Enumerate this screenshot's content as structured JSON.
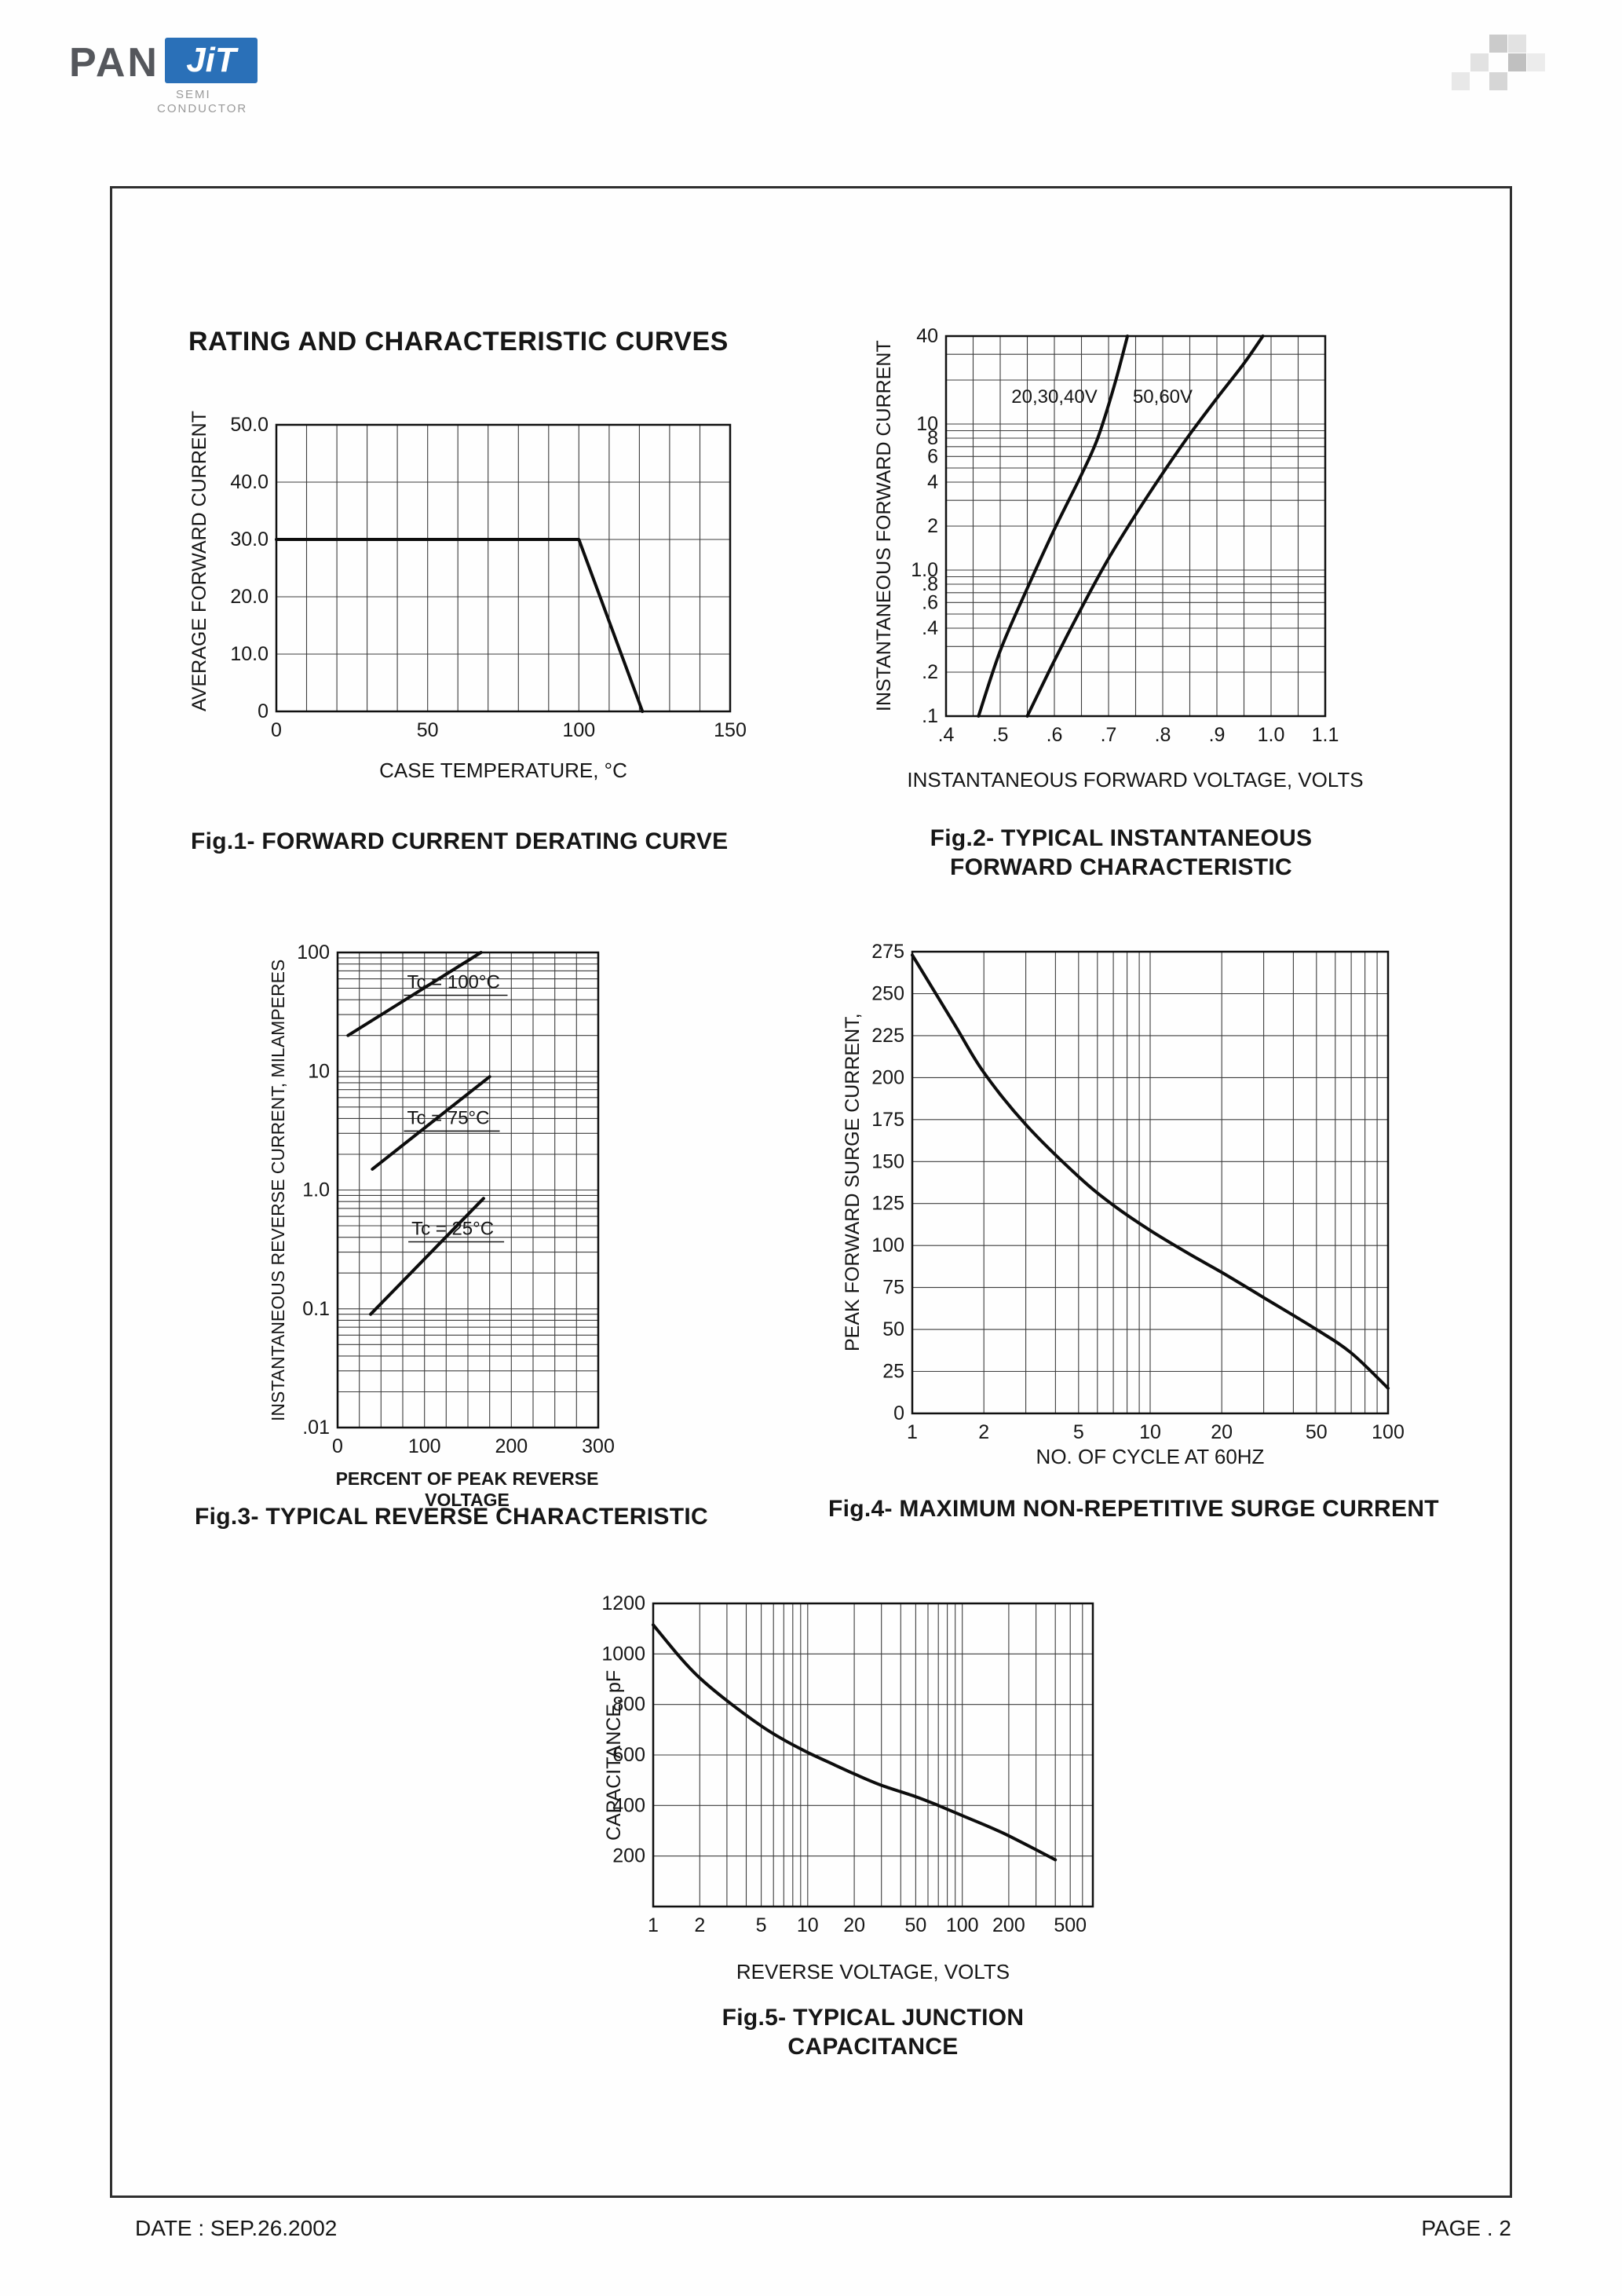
{
  "header": {
    "logo": {
      "pan": "PAN",
      "jit": "JiT",
      "semi": "SEMI",
      "conductor": "CONDUCTOR",
      "brand_blue": "#2a70b8"
    }
  },
  "title": "RATING AND CHARACTERISTIC CURVES",
  "footer": {
    "date": "DATE : SEP.26.2002",
    "page": "PAGE . 2"
  },
  "chart_data": [
    {
      "id": "fig1",
      "type": "line",
      "caption": "Fig.1- FORWARD CURRENT DERATING CURVE",
      "xlabel": "CASE TEMPERATURE, °C",
      "ylabel": "AVERAGE FORWARD CURRENT",
      "x": {
        "scale": "linear",
        "min": 0,
        "max": 150,
        "ticks": [
          0,
          50,
          100,
          150
        ],
        "tick_labels": [
          "0",
          "50",
          "100",
          "150"
        ],
        "minor_step": 10
      },
      "y": {
        "scale": "linear",
        "min": 0,
        "max": 50,
        "ticks": [
          0,
          10,
          20,
          30,
          40,
          50
        ],
        "tick_labels": [
          "0",
          "10.0",
          "20.0",
          "30.0",
          "40.0",
          "50.0"
        ],
        "minor_step": 10
      },
      "series": [
        {
          "name": "forward-current-derating",
          "smooth": false,
          "points": [
            [
              0,
              30
            ],
            [
              100,
              30
            ],
            [
              121,
              0
            ]
          ]
        }
      ],
      "annotations": []
    },
    {
      "id": "fig2",
      "type": "line",
      "caption": "Fig.2- TYPICAL INSTANTANEOUS FORWARD CHARACTERISTIC",
      "xlabel": "INSTANTANEOUS FORWARD VOLTAGE, VOLTS",
      "ylabel": "INSTANTANEOUS FORWARD CURRENT",
      "x": {
        "scale": "linear",
        "min": 0.4,
        "max": 1.1,
        "ticks": [
          0.4,
          0.5,
          0.6,
          0.7,
          0.8,
          0.9,
          1.0,
          1.1
        ],
        "tick_labels": [
          ".4",
          ".5",
          ".6",
          ".7",
          ".8",
          ".9",
          "1.0",
          "1.1"
        ],
        "minor_step": 0.05
      },
      "y": {
        "scale": "log",
        "min": 0.1,
        "max": 40,
        "ticks": [
          40,
          10,
          8,
          6,
          4,
          2,
          1.0,
          0.8,
          0.6,
          0.4,
          0.2,
          0.1
        ],
        "tick_labels": [
          "40",
          "10",
          "8",
          "6",
          "4",
          "2",
          "1.0",
          ".8",
          ".6",
          ".4",
          ".2",
          ".1"
        ]
      },
      "series": [
        {
          "name": "vf-20-30-40V",
          "smooth": true,
          "points": [
            [
              0.46,
              0.1
            ],
            [
              0.5,
              0.28
            ],
            [
              0.55,
              0.75
            ],
            [
              0.6,
              1.9
            ],
            [
              0.65,
              4.5
            ],
            [
              0.68,
              8
            ],
            [
              0.71,
              18
            ],
            [
              0.735,
              40
            ]
          ]
        },
        {
          "name": "vf-50-60V",
          "smooth": true,
          "points": [
            [
              0.55,
              0.1
            ],
            [
              0.6,
              0.24
            ],
            [
              0.65,
              0.55
            ],
            [
              0.7,
              1.2
            ],
            [
              0.75,
              2.4
            ],
            [
              0.8,
              4.6
            ],
            [
              0.85,
              8.5
            ],
            [
              0.9,
              15
            ],
            [
              0.95,
              26
            ],
            [
              0.985,
              40
            ]
          ]
        }
      ],
      "annotations": [
        {
          "text": "20,30,40V",
          "x": 0.6,
          "y": 14,
          "anchor": "middle"
        },
        {
          "text": "50,60V",
          "x": 0.8,
          "y": 14,
          "anchor": "middle"
        }
      ]
    },
    {
      "id": "fig3",
      "type": "line",
      "caption": "Fig.3- TYPICAL REVERSE CHARACTERISTIC",
      "xlabel": "PERCENT OF PEAK REVERSE VOLTAGE",
      "ylabel": "INSTANTANEOUS REVERSE CURRENT, MILAMPERES",
      "x": {
        "scale": "linear",
        "min": 0,
        "max": 300,
        "ticks": [
          0,
          100,
          200,
          300
        ],
        "tick_labels": [
          "0",
          "100",
          "200",
          "300"
        ],
        "minor_step": 25
      },
      "y": {
        "scale": "log",
        "min": 0.01,
        "max": 100,
        "ticks": [
          100,
          10,
          1,
          0.1,
          0.01
        ],
        "tick_labels": [
          "100",
          "10",
          "1.0",
          "0.1",
          ".01"
        ]
      },
      "series": [
        {
          "name": "tc-100C",
          "smooth": false,
          "points": [
            [
              12,
              20
            ],
            [
              165,
              100
            ]
          ]
        },
        {
          "name": "tc-75C",
          "smooth": false,
          "points": [
            [
              40,
              1.5
            ],
            [
              175,
              9
            ]
          ]
        },
        {
          "name": "tc-25C",
          "smooth": false,
          "points": [
            [
              38,
              0.09
            ],
            [
              168,
              0.85
            ]
          ]
        }
      ],
      "annotations": [
        {
          "text": "Tc = 100°C",
          "x": 80,
          "y": 50,
          "anchor": "start",
          "ul": 128
        },
        {
          "text": "Tc = 75°C",
          "x": 80,
          "y": 3.6,
          "anchor": "start",
          "ul": 118
        },
        {
          "text": "Tc = 25°C",
          "x": 85,
          "y": 0.42,
          "anchor": "start",
          "ul": 118
        }
      ]
    },
    {
      "id": "fig4",
      "type": "line",
      "caption": "Fig.4- MAXIMUM NON-REPETITIVE SURGE CURRENT",
      "xlabel": "NO. OF CYCLE AT 60HZ",
      "ylabel": "PEAK FORWARD SURGE CURRENT,",
      "x": {
        "scale": "log",
        "min": 1,
        "max": 100,
        "ticks": [
          1,
          2,
          5,
          10,
          20,
          50,
          100
        ],
        "tick_labels": [
          "1",
          "2",
          "5",
          "10",
          "20",
          "50",
          "100"
        ]
      },
      "y": {
        "scale": "linear",
        "min": 0,
        "max": 275,
        "ticks": [
          0,
          25,
          50,
          75,
          100,
          125,
          150,
          175,
          200,
          225,
          250,
          275
        ],
        "tick_labels": [
          "0",
          "25",
          "50",
          "75",
          "100",
          "125",
          "150",
          "175",
          "200",
          "225",
          "250",
          "275"
        ],
        "minor_step": 25
      },
      "series": [
        {
          "name": "surge-current",
          "smooth": true,
          "points": [
            [
              1,
              273
            ],
            [
              1.5,
              232
            ],
            [
              2,
              203
            ],
            [
              3,
              172
            ],
            [
              5,
              141
            ],
            [
              7,
              124
            ],
            [
              10,
              109
            ],
            [
              15,
              94
            ],
            [
              20,
              84
            ],
            [
              30,
              69
            ],
            [
              50,
              50
            ],
            [
              70,
              36
            ],
            [
              100,
              15
            ]
          ]
        }
      ],
      "annotations": []
    },
    {
      "id": "fig5",
      "type": "line",
      "caption": "Fig.5- TYPICAL JUNCTION CAPACITANCE",
      "xlabel": "REVERSE VOLTAGE, VOLTS",
      "ylabel": "CAPACITANCE, pF",
      "x": {
        "scale": "log",
        "min": 1,
        "max": 700,
        "ticks": [
          1,
          2,
          5,
          10,
          20,
          50,
          100,
          200,
          500
        ],
        "tick_labels": [
          "1",
          "2",
          "5",
          "10",
          "20",
          "50",
          "100",
          "200",
          "500"
        ]
      },
      "y": {
        "scale": "linear",
        "min": 0,
        "max": 1200,
        "ticks": [
          200,
          400,
          600,
          800,
          1000,
          1200
        ],
        "tick_labels": [
          "200",
          "400",
          "600",
          "800",
          "1000",
          "1200"
        ],
        "minor_step": 200
      },
      "series": [
        {
          "name": "junction-capacitance",
          "smooth": true,
          "points": [
            [
              1,
              1115
            ],
            [
              1.5,
              985
            ],
            [
              2,
              905
            ],
            [
              3,
              815
            ],
            [
              5,
              715
            ],
            [
              7,
              660
            ],
            [
              10,
              610
            ],
            [
              15,
              560
            ],
            [
              20,
              525
            ],
            [
              30,
              480
            ],
            [
              50,
              435
            ],
            [
              70,
              400
            ],
            [
              100,
              360
            ],
            [
              150,
              315
            ],
            [
              200,
              280
            ],
            [
              300,
              225
            ],
            [
              400,
              185
            ]
          ]
        }
      ],
      "annotations": []
    }
  ]
}
